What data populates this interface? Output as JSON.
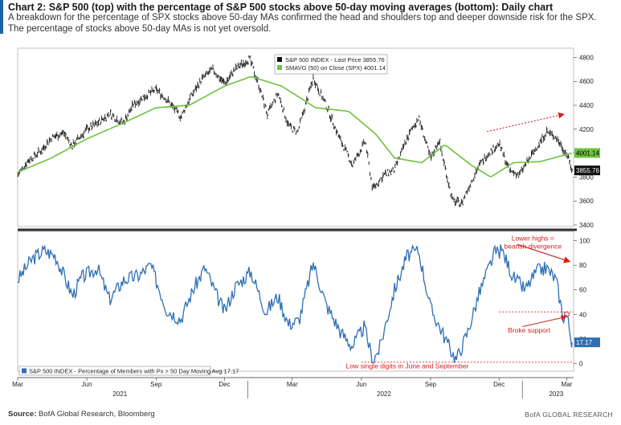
{
  "header": {
    "title": "Chart 2: S&P 500 (top) with the percentage of S&P 500 stocks above 50-day moving averages (bottom): Daily chart",
    "subtitle": "A breakdown for the percentage of SPX stocks above 50-day MAs confirmed the head and shoulders top and deeper downside risk for the SPX. The percentage of stocks above 50-day MAs is not yet oversold."
  },
  "footer": {
    "source_label": "Source:",
    "source_text": "BofA Global Research, Bloomberg",
    "brand": "BofA GLOBAL RESEARCH"
  },
  "colors": {
    "price": "#111111",
    "ma": "#6dc23f",
    "breadth": "#2e6fb5",
    "annotation": "#d42020",
    "divider": "#333333"
  },
  "chart_data": [
    {
      "type": "line",
      "panel": "top",
      "ylim": [
        3400,
        4850
      ],
      "yticks": [
        3400,
        3600,
        3800,
        4000,
        4200,
        4400,
        4600,
        4800
      ],
      "x_start": "2021-03-01",
      "x_end": "2023-03-08",
      "series": [
        {
          "name": "S&P 500 INDEX - Last Price",
          "last_value": "3855.76",
          "style": "ohlc-bars",
          "dates": [
            "2021-03-01",
            "2021-03-15",
            "2021-04-01",
            "2021-04-15",
            "2021-05-01",
            "2021-05-12",
            "2021-06-01",
            "2021-06-15",
            "2021-07-01",
            "2021-07-19",
            "2021-08-01",
            "2021-08-15",
            "2021-09-01",
            "2021-09-15",
            "2021-10-04",
            "2021-10-15",
            "2021-11-01",
            "2021-11-15",
            "2021-12-01",
            "2021-12-15",
            "2022-01-03",
            "2022-01-15",
            "2022-01-27",
            "2022-02-10",
            "2022-02-24",
            "2022-03-08",
            "2022-03-29",
            "2022-04-15",
            "2022-05-01",
            "2022-05-20",
            "2022-06-06",
            "2022-06-16",
            "2022-07-01",
            "2022-07-15",
            "2022-08-01",
            "2022-08-16",
            "2022-09-01",
            "2022-09-12",
            "2022-09-30",
            "2022-10-12",
            "2022-11-01",
            "2022-11-15",
            "2022-12-01",
            "2022-12-15",
            "2022-12-28",
            "2023-01-15",
            "2023-02-02",
            "2023-02-15",
            "2023-03-01",
            "2023-03-08"
          ],
          "values": [
            3820,
            3940,
            4020,
            4130,
            4170,
            4060,
            4200,
            4250,
            4330,
            4250,
            4400,
            4470,
            4530,
            4450,
            4300,
            4450,
            4620,
            4700,
            4580,
            4700,
            4790,
            4580,
            4320,
            4500,
            4230,
            4170,
            4630,
            4400,
            4150,
            3900,
            4100,
            3700,
            3820,
            3860,
            4130,
            4300,
            3950,
            4110,
            3600,
            3580,
            3860,
            3990,
            4080,
            3850,
            3820,
            4000,
            4180,
            4130,
            3990,
            3855.76
          ]
        },
        {
          "name": "SMAVG (50) on Close (SPX)",
          "last_value": "4001.14",
          "dates": [
            "2021-03-01",
            "2021-04-15",
            "2021-06-01",
            "2021-07-15",
            "2021-09-01",
            "2021-10-15",
            "2021-12-01",
            "2022-01-05",
            "2022-02-15",
            "2022-04-01",
            "2022-05-15",
            "2022-06-20",
            "2022-07-15",
            "2022-08-20",
            "2022-09-20",
            "2022-10-25",
            "2022-11-20",
            "2022-12-20",
            "2023-01-25",
            "2023-03-08"
          ],
          "values": [
            3840,
            3960,
            4120,
            4240,
            4380,
            4400,
            4560,
            4640,
            4560,
            4380,
            4350,
            4160,
            3960,
            3920,
            4070,
            3900,
            3800,
            3920,
            3930,
            4001.14
          ]
        }
      ],
      "annotations": []
    },
    {
      "type": "line",
      "panel": "bottom",
      "ylim": [
        -5,
        105
      ],
      "yticks": [
        0,
        20,
        40,
        60,
        80,
        100
      ],
      "x_start": "2021-03-01",
      "x_end": "2023-03-08",
      "xlabels": [
        "Mar",
        "Jun",
        "Sep",
        "Dec",
        "Mar",
        "Jun",
        "Sep",
        "Dec",
        "Mar"
      ],
      "year_labels": [
        "2021",
        "2022",
        "2023"
      ],
      "series": [
        {
          "name": "S&P 500 INDEX - Percentage of Members with Px > 50 Day Moving Avg",
          "last_value": "17.17",
          "dates": [
            "2021-03-01",
            "2021-03-20",
            "2021-04-05",
            "2021-04-20",
            "2021-05-13",
            "2021-05-25",
            "2021-06-15",
            "2021-07-01",
            "2021-07-20",
            "2021-08-10",
            "2021-08-25",
            "2021-09-15",
            "2021-10-04",
            "2021-10-20",
            "2021-11-05",
            "2021-11-20",
            "2021-12-01",
            "2021-12-15",
            "2022-01-05",
            "2022-01-25",
            "2022-02-10",
            "2022-02-24",
            "2022-03-10",
            "2022-03-29",
            "2022-04-15",
            "2022-05-05",
            "2022-05-20",
            "2022-06-05",
            "2022-06-16",
            "2022-06-25",
            "2022-07-15",
            "2022-08-01",
            "2022-08-16",
            "2022-09-01",
            "2022-09-13",
            "2022-09-27",
            "2022-10-05",
            "2022-10-20",
            "2022-11-05",
            "2022-11-25",
            "2022-12-05",
            "2022-12-20",
            "2023-01-05",
            "2023-01-20",
            "2023-02-02",
            "2023-02-15",
            "2023-02-24",
            "2023-03-01",
            "2023-03-08"
          ],
          "values": [
            68,
            85,
            92,
            88,
            55,
            70,
            78,
            52,
            68,
            72,
            80,
            44,
            36,
            60,
            78,
            56,
            42,
            62,
            75,
            42,
            55,
            32,
            35,
            82,
            48,
            25,
            14,
            30,
            2,
            12,
            60,
            88,
            92,
            45,
            30,
            12,
            3,
            25,
            58,
            90,
            92,
            70,
            60,
            75,
            78,
            68,
            38,
            40,
            17.17
          ]
        }
      ],
      "support_level": 42,
      "floor_level": 1,
      "annotations": [
        {
          "id": "lower-highs",
          "text": "Lower highs =\nbearish divergence"
        },
        {
          "id": "broke-support",
          "text": "Broke support"
        },
        {
          "id": "low-single",
          "text": "Low single digits in June and September"
        }
      ]
    }
  ]
}
